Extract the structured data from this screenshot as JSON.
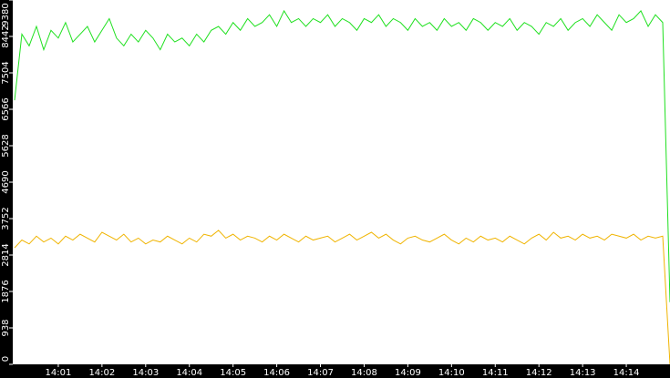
{
  "chart_data": {
    "type": "line",
    "categories": [
      null,
      null,
      null,
      null,
      null,
      null,
      "14:01",
      null,
      null,
      null,
      null,
      null,
      "14:02",
      null,
      null,
      null,
      null,
      null,
      "14:03",
      null,
      null,
      null,
      null,
      null,
      "14:04",
      null,
      null,
      null,
      null,
      null,
      "14:05",
      null,
      null,
      null,
      null,
      null,
      "14:06",
      null,
      null,
      null,
      null,
      null,
      "14:07",
      null,
      null,
      null,
      null,
      null,
      "14:08",
      null,
      null,
      null,
      null,
      null,
      "14:09",
      null,
      null,
      null,
      null,
      null,
      "14:10",
      null,
      null,
      null,
      null,
      null,
      "14:11",
      null,
      null,
      null,
      null,
      null,
      "14:12",
      null,
      null,
      null,
      null,
      null,
      "14:13",
      null,
      null,
      null,
      null,
      null,
      "14:14",
      null,
      null,
      null,
      null,
      null,
      null
    ],
    "series": [
      {
        "color": "#1fe01f",
        "values": [
          6800,
          8500,
          8200,
          8700,
          8100,
          8600,
          8400,
          8800,
          8300,
          8500,
          8700,
          8300,
          8600,
          8900,
          8400,
          8200,
          8500,
          8300,
          8600,
          8400,
          8100,
          8500,
          8300,
          8400,
          8200,
          8500,
          8300,
          8600,
          8700,
          8500,
          8800,
          8600,
          8900,
          8700,
          8800,
          9000,
          8700,
          9100,
          8800,
          8900,
          8700,
          8900,
          8800,
          9000,
          8700,
          8900,
          8800,
          8600,
          8900,
          8800,
          9000,
          8700,
          8900,
          8800,
          8600,
          8900,
          8700,
          8800,
          8600,
          8900,
          8700,
          8800,
          8600,
          8900,
          8800,
          8600,
          8800,
          8700,
          8900,
          8600,
          8800,
          8700,
          8500,
          8800,
          8700,
          8900,
          8600,
          8800,
          8900,
          8700,
          9000,
          8800,
          8600,
          9000,
          8800,
          8900,
          9100,
          8700,
          9000,
          8800,
          1600
        ]
      },
      {
        "color": "#f0b400",
        "values": [
          3000,
          3200,
          3100,
          3300,
          3150,
          3250,
          3100,
          3300,
          3200,
          3350,
          3250,
          3150,
          3400,
          3300,
          3200,
          3350,
          3150,
          3250,
          3100,
          3200,
          3150,
          3300,
          3200,
          3100,
          3250,
          3150,
          3350,
          3300,
          3450,
          3250,
          3350,
          3200,
          3300,
          3250,
          3150,
          3300,
          3200,
          3350,
          3250,
          3150,
          3300,
          3200,
          3250,
          3300,
          3150,
          3250,
          3350,
          3200,
          3300,
          3400,
          3250,
          3350,
          3200,
          3100,
          3250,
          3300,
          3200,
          3150,
          3250,
          3350,
          3200,
          3100,
          3250,
          3150,
          3300,
          3200,
          3250,
          3150,
          3300,
          3200,
          3100,
          3250,
          3350,
          3200,
          3400,
          3250,
          3300,
          3200,
          3350,
          3250,
          3300,
          3200,
          3350,
          3300,
          3250,
          3350,
          3200,
          3300,
          3250,
          3300,
          0
        ]
      }
    ],
    "ylim": [
      0,
      9380
    ],
    "yticks": [
      0,
      938,
      1876,
      2814,
      3752,
      4690,
      5628,
      6566,
      7504,
      8442,
      9380
    ]
  }
}
